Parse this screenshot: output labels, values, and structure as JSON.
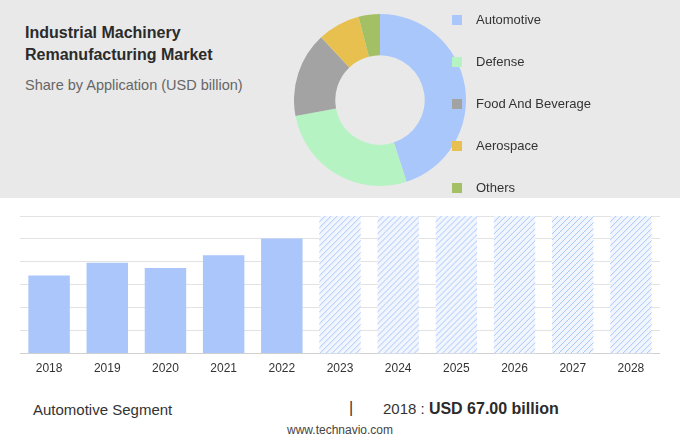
{
  "chart_data": [
    {
      "type": "doughnut",
      "title": "Industrial Machinery Remanufacturing Market",
      "subtitle": "Share by Application (USD billion)",
      "categories": [
        "Automotive",
        "Defense",
        "Food And Beverage",
        "Aerospace",
        "Others"
      ],
      "values": [
        45,
        27,
        16,
        8,
        4
      ],
      "colors": [
        "#a9c7fb",
        "#b6f3c3",
        "#a3a3a3",
        "#e8c04f",
        "#a3c064"
      ],
      "legend": "right"
    },
    {
      "type": "bar",
      "categories": [
        "2018",
        "2019",
        "2020",
        "2021",
        "2022",
        "2023",
        "2024",
        "2025",
        "2026",
        "2027",
        "2028"
      ],
      "values": [
        3.41,
        3.96,
        3.73,
        4.29,
        5.02,
        null,
        null,
        null,
        null,
        null,
        null
      ],
      "color": "#aac6fb",
      "ylim": [
        0,
        6
      ],
      "yticks": [
        0,
        1,
        2,
        3,
        4,
        5,
        6
      ],
      "grid": true,
      "tick_labels": "x"
    }
  ],
  "footer": {
    "segment": "Automotive Segment",
    "separator": "|",
    "year_label": "2018 :",
    "value_text": "USD 67.00 billion",
    "source": "www.technavio.com"
  }
}
